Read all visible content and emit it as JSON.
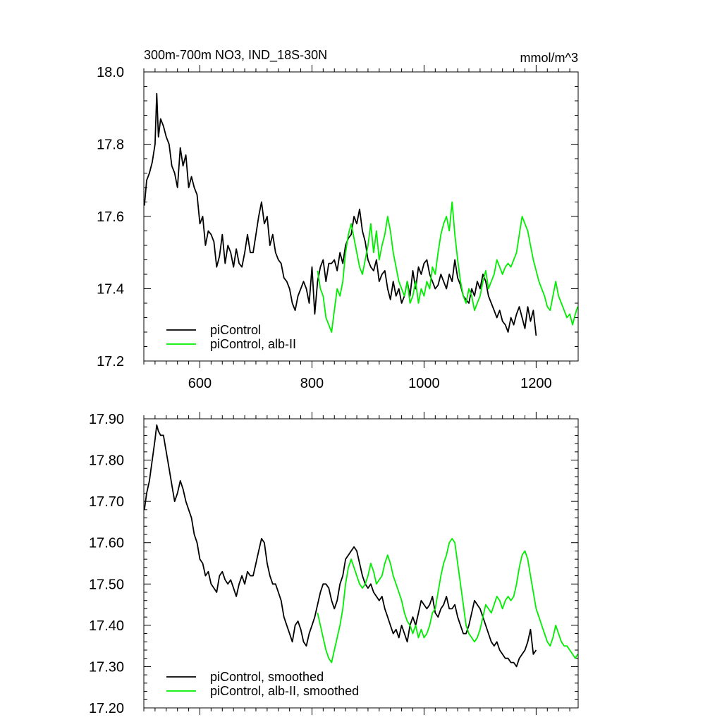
{
  "chart_data": [
    {
      "type": "line",
      "title": "300m-700m NO3, IND_18S-30N",
      "units": "mmol/m^3",
      "xlim": [
        500,
        1275
      ],
      "ylim": [
        17.2,
        18.0
      ],
      "x_ticks": [
        600,
        800,
        1000,
        1200
      ],
      "x_tick_labels": [
        "600",
        "800",
        "1000",
        "1200"
      ],
      "y_ticks": [
        17.2,
        17.4,
        17.6,
        17.8,
        18.0
      ],
      "y_tick_labels": [
        "17.2",
        "17.4",
        "17.6",
        "17.8",
        "18.0"
      ],
      "legend_placement": "bottom-left",
      "series": [
        {
          "name": "piControl",
          "color": "#000000",
          "x": [
            501,
            505,
            510,
            515,
            520,
            523,
            526,
            530,
            535,
            540,
            545,
            550,
            555,
            560,
            565,
            570,
            575,
            580,
            585,
            590,
            595,
            600,
            605,
            610,
            615,
            620,
            625,
            630,
            635,
            640,
            645,
            650,
            655,
            660,
            665,
            670,
            675,
            680,
            685,
            690,
            695,
            700,
            705,
            710,
            715,
            720,
            725,
            730,
            735,
            740,
            745,
            750,
            755,
            760,
            765,
            770,
            775,
            780,
            785,
            790,
            795,
            800,
            805,
            810,
            815,
            820,
            825,
            830,
            835,
            840,
            845,
            850,
            855,
            860,
            865,
            870,
            875,
            880,
            885,
            890,
            895,
            900,
            905,
            910,
            915,
            920,
            925,
            930,
            935,
            940,
            945,
            950,
            955,
            960,
            965,
            970,
            975,
            980,
            985,
            990,
            995,
            1000,
            1005,
            1010,
            1015,
            1020,
            1025,
            1030,
            1035,
            1040,
            1045,
            1050,
            1055,
            1060,
            1065,
            1070,
            1075,
            1080,
            1085,
            1090,
            1095,
            1100,
            1105,
            1110,
            1115,
            1120,
            1125,
            1130,
            1135,
            1140,
            1145,
            1150,
            1155,
            1160,
            1165,
            1170,
            1175,
            1180,
            1185,
            1190,
            1195,
            1200
          ],
          "values": [
            17.63,
            17.7,
            17.72,
            17.75,
            17.8,
            17.94,
            17.82,
            17.87,
            17.85,
            17.82,
            17.8,
            17.74,
            17.72,
            17.68,
            17.79,
            17.74,
            17.77,
            17.68,
            17.71,
            17.68,
            17.66,
            17.58,
            17.6,
            17.52,
            17.56,
            17.55,
            17.53,
            17.46,
            17.49,
            17.55,
            17.47,
            17.52,
            17.5,
            17.46,
            17.51,
            17.47,
            17.46,
            17.5,
            17.55,
            17.5,
            17.5,
            17.55,
            17.6,
            17.64,
            17.58,
            17.6,
            17.52,
            17.55,
            17.5,
            17.48,
            17.47,
            17.43,
            17.42,
            17.4,
            17.36,
            17.34,
            17.38,
            17.4,
            17.42,
            17.4,
            17.36,
            17.46,
            17.33,
            17.42,
            17.46,
            17.48,
            17.42,
            17.47,
            17.47,
            17.48,
            17.45,
            17.5,
            17.47,
            17.52,
            17.54,
            17.55,
            17.6,
            17.58,
            17.62,
            17.56,
            17.53,
            17.48,
            17.46,
            17.45,
            17.48,
            17.42,
            17.44,
            17.45,
            17.4,
            17.37,
            17.42,
            17.38,
            17.4,
            17.36,
            17.38,
            17.42,
            17.38,
            17.45,
            17.4,
            17.46,
            17.44,
            17.47,
            17.48,
            17.44,
            17.42,
            17.4,
            17.41,
            17.44,
            17.42,
            17.4,
            17.44,
            17.42,
            17.48,
            17.43,
            17.41,
            17.38,
            17.37,
            17.36,
            17.4,
            17.38,
            17.42,
            17.4,
            17.44,
            17.42,
            17.38,
            17.36,
            17.34,
            17.32,
            17.34,
            17.31,
            17.3,
            17.28,
            17.32,
            17.3,
            17.33,
            17.35,
            17.32,
            17.29,
            17.35,
            17.31,
            17.34,
            17.27
          ]
        },
        {
          "name": "piControl, alb-II",
          "color": "#00ee00",
          "x": [
            810,
            815,
            820,
            825,
            830,
            835,
            840,
            845,
            850,
            855,
            860,
            865,
            870,
            875,
            880,
            885,
            890,
            895,
            900,
            905,
            910,
            915,
            920,
            925,
            930,
            935,
            940,
            945,
            950,
            955,
            960,
            965,
            970,
            975,
            980,
            985,
            990,
            995,
            1000,
            1005,
            1010,
            1015,
            1020,
            1025,
            1030,
            1035,
            1040,
            1045,
            1050,
            1055,
            1060,
            1065,
            1070,
            1075,
            1080,
            1085,
            1090,
            1095,
            1100,
            1105,
            1110,
            1115,
            1120,
            1125,
            1130,
            1135,
            1140,
            1145,
            1150,
            1155,
            1160,
            1165,
            1170,
            1175,
            1180,
            1185,
            1190,
            1195,
            1200,
            1205,
            1210,
            1215,
            1220,
            1225,
            1230,
            1235,
            1240,
            1245,
            1250,
            1255,
            1260,
            1265,
            1270,
            1274
          ],
          "values": [
            17.45,
            17.4,
            17.38,
            17.32,
            17.3,
            17.28,
            17.34,
            17.4,
            17.38,
            17.42,
            17.5,
            17.55,
            17.58,
            17.54,
            17.5,
            17.46,
            17.44,
            17.48,
            17.52,
            17.58,
            17.5,
            17.56,
            17.48,
            17.52,
            17.55,
            17.6,
            17.56,
            17.5,
            17.46,
            17.42,
            17.4,
            17.38,
            17.42,
            17.36,
            17.38,
            17.42,
            17.36,
            17.4,
            17.38,
            17.42,
            17.4,
            17.46,
            17.44,
            17.5,
            17.55,
            17.58,
            17.6,
            17.56,
            17.64,
            17.55,
            17.48,
            17.42,
            17.38,
            17.36,
            17.4,
            17.38,
            17.34,
            17.36,
            17.38,
            17.42,
            17.45,
            17.4,
            17.42,
            17.44,
            17.48,
            17.46,
            17.44,
            17.46,
            17.47,
            17.46,
            17.48,
            17.5,
            17.55,
            17.6,
            17.58,
            17.56,
            17.52,
            17.48,
            17.45,
            17.42,
            17.4,
            17.38,
            17.35,
            17.34,
            17.38,
            17.42,
            17.38,
            17.36,
            17.34,
            17.32,
            17.33,
            17.3,
            17.33,
            17.35
          ]
        }
      ]
    },
    {
      "type": "line",
      "xlim": [
        500,
        1275
      ],
      "ylim": [
        17.2,
        17.9
      ],
      "y_ticks": [
        17.2,
        17.3,
        17.4,
        17.5,
        17.6,
        17.7,
        17.8,
        17.9
      ],
      "y_tick_labels": [
        "17.20",
        "17.30",
        "17.40",
        "17.50",
        "17.60",
        "17.70",
        "17.80",
        "17.90"
      ],
      "legend_placement": "bottom-left",
      "series": [
        {
          "name": "piControl, smoothed",
          "color": "#000000",
          "x": [
            501,
            505,
            510,
            515,
            520,
            523,
            526,
            530,
            535,
            540,
            545,
            550,
            555,
            560,
            565,
            570,
            575,
            580,
            585,
            590,
            595,
            600,
            605,
            610,
            615,
            620,
            625,
            630,
            635,
            640,
            645,
            650,
            655,
            660,
            665,
            670,
            675,
            680,
            685,
            690,
            695,
            700,
            705,
            710,
            715,
            720,
            725,
            730,
            735,
            740,
            745,
            750,
            755,
            760,
            765,
            770,
            775,
            780,
            785,
            790,
            795,
            800,
            805,
            810,
            815,
            820,
            825,
            830,
            835,
            840,
            845,
            850,
            855,
            860,
            865,
            870,
            875,
            880,
            885,
            890,
            895,
            900,
            905,
            910,
            915,
            920,
            925,
            930,
            935,
            940,
            945,
            950,
            955,
            960,
            965,
            970,
            975,
            980,
            985,
            990,
            995,
            1000,
            1005,
            1010,
            1015,
            1020,
            1025,
            1030,
            1035,
            1040,
            1045,
            1050,
            1055,
            1060,
            1065,
            1070,
            1075,
            1080,
            1085,
            1090,
            1095,
            1100,
            1105,
            1110,
            1115,
            1120,
            1125,
            1130,
            1135,
            1140,
            1145,
            1150,
            1155,
            1160,
            1165,
            1170,
            1175,
            1180,
            1185,
            1190,
            1195,
            1200
          ],
          "values": [
            17.68,
            17.72,
            17.75,
            17.8,
            17.85,
            17.885,
            17.87,
            17.86,
            17.86,
            17.82,
            17.78,
            17.74,
            17.7,
            17.72,
            17.75,
            17.73,
            17.7,
            17.68,
            17.66,
            17.62,
            17.6,
            17.56,
            17.55,
            17.52,
            17.53,
            17.5,
            17.49,
            17.48,
            17.52,
            17.53,
            17.51,
            17.5,
            17.51,
            17.49,
            17.47,
            17.5,
            17.52,
            17.5,
            17.53,
            17.52,
            17.52,
            17.55,
            17.58,
            17.61,
            17.6,
            17.55,
            17.52,
            17.5,
            17.5,
            17.48,
            17.46,
            17.42,
            17.4,
            17.38,
            17.36,
            17.4,
            17.41,
            17.39,
            17.36,
            17.35,
            17.38,
            17.4,
            17.42,
            17.45,
            17.48,
            17.5,
            17.5,
            17.49,
            17.46,
            17.44,
            17.46,
            17.5,
            17.52,
            17.56,
            17.57,
            17.58,
            17.59,
            17.58,
            17.55,
            17.52,
            17.5,
            17.49,
            17.5,
            17.48,
            17.47,
            17.46,
            17.47,
            17.44,
            17.42,
            17.4,
            17.38,
            17.39,
            17.37,
            17.4,
            17.38,
            17.36,
            17.4,
            17.42,
            17.4,
            17.43,
            17.46,
            17.45,
            17.44,
            17.45,
            17.47,
            17.43,
            17.42,
            17.44,
            17.45,
            17.47,
            17.44,
            17.44,
            17.45,
            17.42,
            17.4,
            17.38,
            17.38,
            17.4,
            17.43,
            17.46,
            17.45,
            17.44,
            17.42,
            17.4,
            17.38,
            17.36,
            17.35,
            17.36,
            17.34,
            17.33,
            17.32,
            17.32,
            17.31,
            17.31,
            17.3,
            17.32,
            17.33,
            17.34,
            17.36,
            17.39,
            17.33,
            17.34
          ]
        },
        {
          "name": "piControl, alb-II, smoothed",
          "color": "#00ee00",
          "x": [
            810,
            815,
            820,
            825,
            830,
            835,
            840,
            845,
            850,
            855,
            860,
            865,
            870,
            875,
            880,
            885,
            890,
            895,
            900,
            905,
            910,
            915,
            920,
            925,
            930,
            935,
            940,
            945,
            950,
            955,
            960,
            965,
            970,
            975,
            980,
            985,
            990,
            995,
            1000,
            1005,
            1010,
            1015,
            1020,
            1025,
            1030,
            1035,
            1040,
            1045,
            1050,
            1055,
            1060,
            1065,
            1070,
            1075,
            1080,
            1085,
            1090,
            1095,
            1100,
            1105,
            1110,
            1115,
            1120,
            1125,
            1130,
            1135,
            1140,
            1145,
            1150,
            1155,
            1160,
            1165,
            1170,
            1175,
            1180,
            1185,
            1190,
            1195,
            1200,
            1205,
            1210,
            1215,
            1220,
            1225,
            1230,
            1235,
            1240,
            1245,
            1250,
            1255,
            1260,
            1265,
            1270,
            1274
          ],
          "values": [
            17.43,
            17.4,
            17.37,
            17.34,
            17.32,
            17.31,
            17.34,
            17.37,
            17.4,
            17.44,
            17.5,
            17.54,
            17.56,
            17.54,
            17.52,
            17.5,
            17.49,
            17.5,
            17.52,
            17.55,
            17.53,
            17.5,
            17.51,
            17.52,
            17.55,
            17.57,
            17.55,
            17.52,
            17.5,
            17.48,
            17.46,
            17.43,
            17.41,
            17.4,
            17.38,
            17.4,
            17.37,
            17.39,
            17.37,
            17.38,
            17.4,
            17.43,
            17.44,
            17.48,
            17.52,
            17.55,
            17.57,
            17.6,
            17.61,
            17.6,
            17.55,
            17.5,
            17.45,
            17.4,
            17.38,
            17.37,
            17.36,
            17.37,
            17.39,
            17.42,
            17.45,
            17.44,
            17.43,
            17.45,
            17.47,
            17.46,
            17.44,
            17.46,
            17.47,
            17.46,
            17.47,
            17.5,
            17.54,
            17.57,
            17.58,
            17.56,
            17.52,
            17.48,
            17.44,
            17.42,
            17.4,
            17.38,
            17.36,
            17.35,
            17.37,
            17.4,
            17.38,
            17.36,
            17.35,
            17.35,
            17.34,
            17.33,
            17.32,
            17.33
          ]
        }
      ]
    }
  ]
}
